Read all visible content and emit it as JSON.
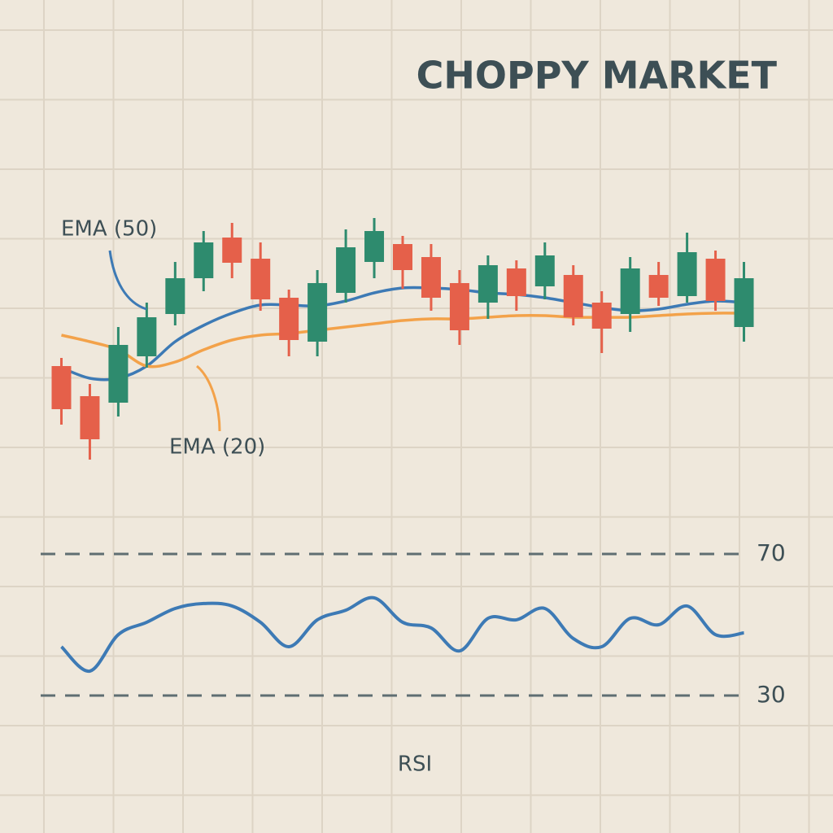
{
  "chart_data": [
    {
      "type": "candlestick",
      "title": "CHOPPY MARKET",
      "categories": [
        null,
        null,
        null,
        null,
        null,
        null,
        null,
        null,
        null,
        null,
        null,
        null,
        null,
        null,
        null,
        null,
        null,
        null,
        null,
        null,
        null,
        null,
        null,
        null,
        null
      ],
      "open": [
        37.5,
        28.25,
        26.25,
        40.5,
        53.5,
        64.5,
        77,
        70.5,
        58.5,
        45,
        60,
        69.5,
        75,
        71,
        63,
        57,
        67.5,
        62,
        65.5,
        57,
        53.5,
        65.5,
        59,
        70.5,
        49.5
      ],
      "high": [
        40,
        32,
        49.5,
        57,
        69.5,
        79,
        81.5,
        75.5,
        61,
        67,
        79.5,
        83,
        77.5,
        75,
        67,
        71.5,
        70,
        75.5,
        68.5,
        60.5,
        71,
        69.5,
        78.5,
        73,
        69.5
      ],
      "low": [
        19.5,
        8.75,
        22,
        37,
        50,
        60.5,
        64.5,
        54.5,
        40.5,
        40.5,
        57,
        64.5,
        61.25,
        54.5,
        44,
        52,
        54.5,
        58,
        50,
        41.5,
        48,
        56,
        57,
        54.5,
        45
      ],
      "close": [
        24.25,
        15,
        44,
        52.5,
        64.5,
        75.5,
        69.25,
        58,
        45.5,
        63,
        74,
        79,
        67,
        58.5,
        48.5,
        68.5,
        59,
        71.5,
        52.5,
        49,
        67.5,
        58.5,
        72.5,
        57.5,
        64.5
      ],
      "up_color": "#2e8b6e",
      "down_color": "#e5604a",
      "series": [
        {
          "name": "EMA (50)",
          "color": "#3d7ab5",
          "values": [
            37,
            33.75,
            33.75,
            37.5,
            45,
            50,
            53.75,
            56.25,
            56.25,
            56,
            57.5,
            60,
            61.5,
            61.5,
            61,
            60,
            59.5,
            58.5,
            57,
            55.5,
            54.5,
            55,
            56.5,
            57.5,
            57
          ]
        },
        {
          "name": "EMA (20)",
          "color": "#f3a24a",
          "values": [
            47,
            45,
            42.5,
            37.5,
            38.75,
            42.5,
            45.5,
            47,
            47.5,
            48.5,
            49.5,
            50.5,
            51.5,
            52,
            52,
            52.5,
            53,
            53,
            52.5,
            52.5,
            52.5,
            53,
            53.5,
            53.75,
            53.75
          ]
        }
      ],
      "ylim": [
        0,
        100
      ]
    },
    {
      "type": "line",
      "xlabel": "RSI",
      "categories": [
        null,
        null,
        null,
        null,
        null,
        null,
        null,
        null,
        null,
        null,
        null,
        null,
        null,
        null,
        null,
        null,
        null,
        null,
        null,
        null,
        null,
        null,
        null,
        null,
        null
      ],
      "values": [
        43.8,
        36.9,
        47.2,
        50.7,
        54.6,
        56,
        55.3,
        50.7,
        43.8,
        51.4,
        54.1,
        57.6,
        50.7,
        49.1,
        42.6,
        51.8,
        51.4,
        54.6,
        46.1,
        43.8,
        51.8,
        50,
        55.3,
        47.2,
        47.7
      ],
      "color": "#3d7ab5",
      "ylim": [
        30,
        70
      ],
      "yticks": [
        30,
        70
      ]
    }
  ]
}
